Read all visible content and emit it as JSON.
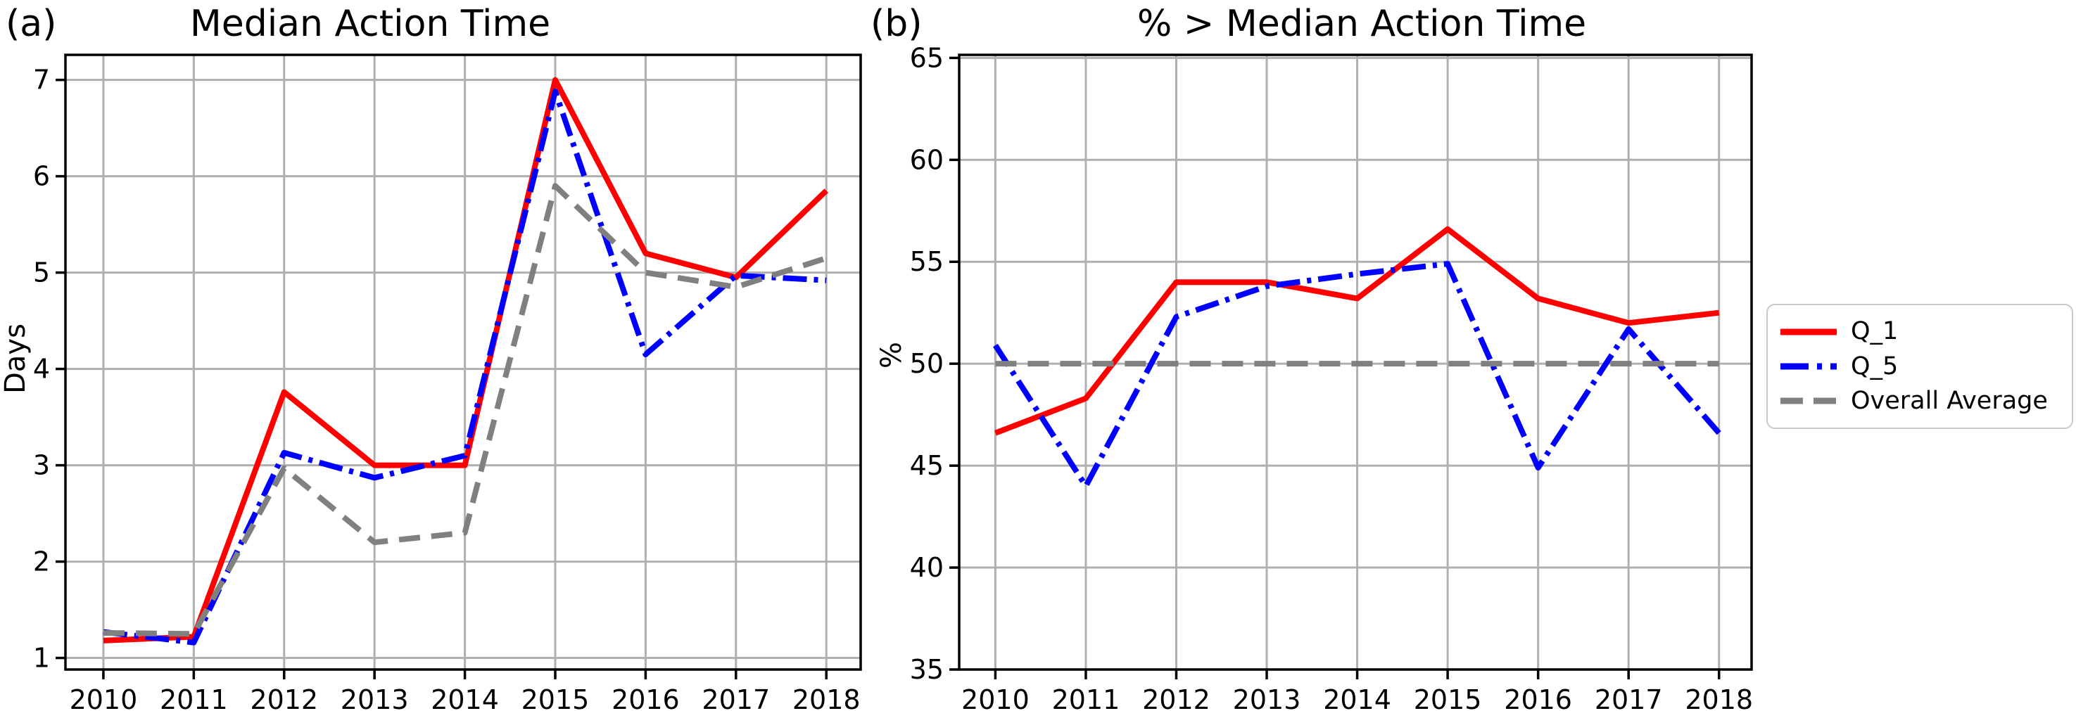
{
  "figure": {
    "panel_labels": {
      "a": "(a)",
      "b": "(b)"
    },
    "colors": {
      "background": "#ffffff",
      "grid": "#b0b0b0",
      "spine": "#000000",
      "text": "#000000",
      "legend_border": "#c9c9c9",
      "q1_red": "#ff0000",
      "q5_blue": "#0000ff",
      "average_gray": "#808080"
    }
  },
  "legend": {
    "position": "right-of-chart-b",
    "items": [
      {
        "label": "Q_1",
        "color": "#ff0000",
        "style": "solid"
      },
      {
        "label": "Q_5",
        "color": "#0000ff",
        "style": "dashdot"
      },
      {
        "label": "Overall Average",
        "color": "#808080",
        "style": "dashed"
      }
    ]
  },
  "chart_data": [
    {
      "id": "a",
      "type": "line",
      "title": "Median Action Time",
      "xlabel": "",
      "ylabel": "Days",
      "grid": true,
      "x": [
        2010,
        2011,
        2012,
        2013,
        2014,
        2015,
        2016,
        2017,
        2018
      ],
      "yticks": [
        1,
        2,
        3,
        4,
        5,
        6,
        7
      ],
      "xlim": [
        2009.58,
        2018.38
      ],
      "ylim": [
        0.88,
        7.26
      ],
      "series": [
        {
          "name": "Q_1",
          "color": "#ff0000",
          "style": "solid",
          "values": [
            1.18,
            1.22,
            3.76,
            3.0,
            3.0,
            7.0,
            5.2,
            4.95,
            5.85
          ]
        },
        {
          "name": "Q_5",
          "color": "#0000ff",
          "style": "dashdot",
          "values": [
            1.27,
            1.16,
            3.13,
            2.87,
            3.1,
            6.88,
            4.15,
            4.97,
            4.92
          ]
        },
        {
          "name": "Overall Average",
          "color": "#808080",
          "style": "dashed",
          "values": [
            1.26,
            1.25,
            2.97,
            2.2,
            2.3,
            5.9,
            5.0,
            4.85,
            5.15
          ]
        }
      ]
    },
    {
      "id": "b",
      "type": "line",
      "title": "% > Median Action Time",
      "xlabel": "",
      "ylabel": "%",
      "grid": true,
      "x": [
        2010,
        2011,
        2012,
        2013,
        2014,
        2015,
        2016,
        2017,
        2018
      ],
      "yticks": [
        35,
        40,
        45,
        50,
        55,
        60,
        65
      ],
      "xlim": [
        2009.6,
        2018.36
      ],
      "ylim": [
        35,
        65.15
      ],
      "series": [
        {
          "name": "Q_1",
          "color": "#ff0000",
          "style": "solid",
          "values": [
            46.6,
            48.3,
            54.0,
            54.0,
            53.2,
            56.6,
            53.2,
            52.0,
            52.5
          ]
        },
        {
          "name": "Q_5",
          "color": "#0000ff",
          "style": "dashdot",
          "values": [
            50.9,
            44.0,
            52.3,
            53.8,
            54.4,
            54.9,
            44.9,
            51.7,
            46.6
          ]
        },
        {
          "name": "Overall Average",
          "color": "#808080",
          "style": "dashed",
          "values": [
            50,
            50,
            50,
            50,
            50,
            50,
            50,
            50,
            50
          ]
        }
      ]
    }
  ]
}
